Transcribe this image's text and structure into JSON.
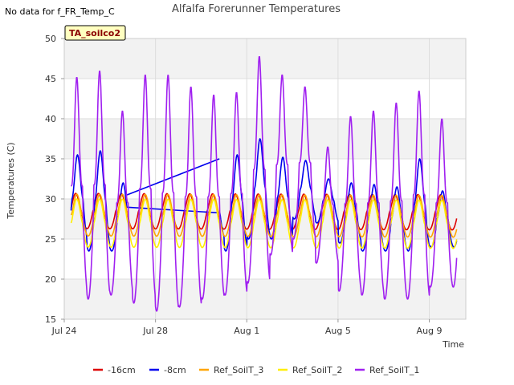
{
  "corner_note": "No data for f_FR_Temp_C",
  "chart_data": {
    "type": "line",
    "title": "Alfalfa Forerunner Temperatures",
    "badge": "TA_soilco2",
    "xlabel": "Time",
    "ylabel": "Temperatures (C)",
    "ylim": [
      15,
      50
    ],
    "xlim": [
      0,
      17.6
    ],
    "yticks": [
      15,
      20,
      25,
      30,
      35,
      40,
      45,
      50
    ],
    "xticks": [
      {
        "label": "Jul 24",
        "value": 0
      },
      {
        "label": "Jul 28",
        "value": 4
      },
      {
        "label": "Aug 1",
        "value": 8
      },
      {
        "label": "Aug 5",
        "value": 12
      },
      {
        "label": "Aug 9",
        "value": 16
      }
    ],
    "grid": true,
    "banded_background": true,
    "legend_position": "bottom",
    "series": [
      {
        "name": "-16cm",
        "color": "#dd0000",
        "baseline": 28.5,
        "amplitude": 2.2,
        "phase": 0.5,
        "sharpness": 1.5,
        "trend": -0.1,
        "peaks": [],
        "mins": []
      },
      {
        "name": "-8cm",
        "color": "#0000ee",
        "baseline": 28.8,
        "amplitude": 5.5,
        "phase": 0.58,
        "sharpness": 2.0,
        "trend": -0.2,
        "peaks": [
          35.5,
          36.0,
          32.0,
          32.5,
          32.5,
          32.0,
          31.5,
          35.5,
          37.5,
          35.2,
          34.8,
          32.5,
          32.0,
          31.8,
          31.5,
          35.0,
          31.0,
          31.0
        ],
        "mins": [
          24.5,
          23.5,
          23.5,
          26.0,
          26.0,
          25.0,
          25.0,
          23.5,
          25.0,
          25.0,
          27.5,
          27.0,
          24.5,
          23.5,
          23.5,
          23.5,
          24.0,
          24.0
        ],
        "bridge": [
          [
            2.75,
            30.5
          ],
          [
            6.8,
            35.0
          ]
        ]
      },
      {
        "name": "Ref_SoilT_3",
        "color": "#ffa500",
        "baseline": 28.0,
        "amplitude": 2.6,
        "phase": 0.55,
        "sharpness": 1.6,
        "trend": -0.1,
        "peaks": [],
        "mins": []
      },
      {
        "name": "Ref_SoilT_2",
        "color": "#ffee00",
        "baseline": 27.0,
        "amplitude": 3.0,
        "phase": 0.55,
        "sharpness": 1.4,
        "trend": -0.1,
        "peaks": [],
        "mins": []
      },
      {
        "name": "Ref_SoilT_1",
        "color": "#a020f0",
        "baseline": 28.0,
        "amplitude": 12.0,
        "phase": 0.55,
        "sharpness": 3.0,
        "trend": 0,
        "peaks": [
          45.2,
          46.0,
          41.0,
          45.5,
          45.5,
          44.0,
          43.0,
          43.3,
          47.8,
          45.5,
          44.0,
          36.5,
          40.3,
          41.0,
          42.0,
          43.5,
          40.0,
          40.0
        ],
        "mins": [
          18.0,
          17.5,
          18.0,
          17.0,
          16.0,
          16.5,
          17.5,
          18.0,
          19.5,
          23.0,
          25.0,
          22.0,
          18.5,
          18.0,
          17.5,
          17.5,
          19.0,
          19.0
        ]
      }
    ]
  }
}
